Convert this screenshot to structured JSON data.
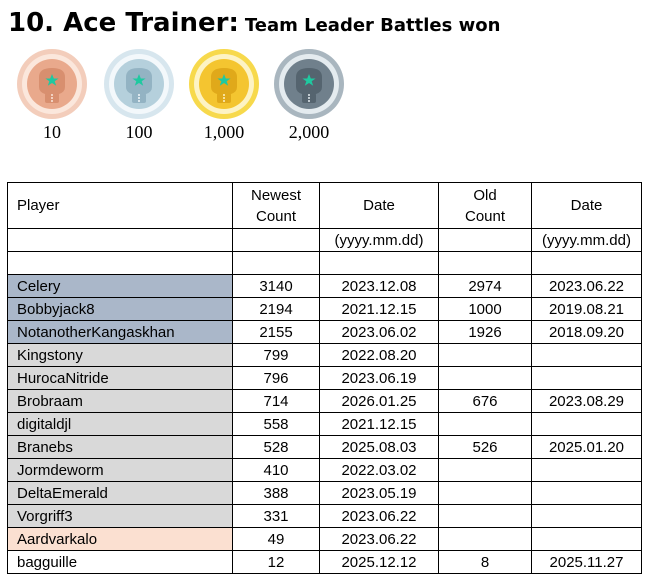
{
  "header": {
    "title": "10. Ace Trainer:",
    "subtitle": "Team Leader Battles won"
  },
  "medals": [
    {
      "tier": "bronze",
      "icon": "boxing-glove-icon",
      "label": "10",
      "color": "#e9a98c"
    },
    {
      "tier": "silver",
      "icon": "boxing-glove-icon",
      "label": "100",
      "color": "#b5d0dc"
    },
    {
      "tier": "gold",
      "icon": "boxing-glove-icon",
      "label": "1,000",
      "color": "#f4c530"
    },
    {
      "tier": "platinum",
      "icon": "boxing-glove-icon",
      "label": "2,000",
      "color": "#70808c"
    }
  ],
  "table": {
    "headers": {
      "player": "Player",
      "newest_count_line1": "Newest",
      "newest_count_line2": "Count",
      "date": "Date",
      "old_count_line1": "Old",
      "old_count_line2": "Count",
      "old_date": "Date",
      "date_format": "(yyyy.mm.dd)",
      "old_date_format": "(yyyy.mm.dd)"
    },
    "row_colors": {
      "blue": "#aab7c9",
      "grey": "#d9d9d9",
      "peach": "#fbe0d1"
    },
    "rows": [
      {
        "player": "Celery",
        "newest": "3140",
        "date": "2023.12.08",
        "old": "2974",
        "old_date": "2023.06.22",
        "shade": "blue"
      },
      {
        "player": "Bobbyjack8",
        "newest": "2194",
        "date": "2021.12.15",
        "old": "1000",
        "old_date": "2019.08.21",
        "shade": "blue"
      },
      {
        "player": "NotanotherKangaskhan",
        "newest": "2155",
        "date": "2023.06.02",
        "old": "1926",
        "old_date": "2018.09.20",
        "shade": "blue"
      },
      {
        "player": "Kingstony",
        "newest": "799",
        "date": "2022.08.20",
        "old": "",
        "old_date": "",
        "shade": "grey"
      },
      {
        "player": "HurocaNitride",
        "newest": "796",
        "date": "2023.06.19",
        "old": "",
        "old_date": "",
        "shade": "grey"
      },
      {
        "player": "Brobraam",
        "newest": "714",
        "date": "2026.01.25",
        "old": "676",
        "old_date": "2023.08.29",
        "shade": "grey"
      },
      {
        "player": "digitaldjl",
        "newest": "558",
        "date": "2021.12.15",
        "old": "",
        "old_date": "",
        "shade": "grey"
      },
      {
        "player": "Branebs",
        "newest": "528",
        "date": "2025.08.03",
        "old": "526",
        "old_date": "2025.01.20",
        "shade": "grey"
      },
      {
        "player": "Jormdeworm",
        "newest": "410",
        "date": "2022.03.02",
        "old": "",
        "old_date": "",
        "shade": "grey"
      },
      {
        "player": "DeltaEmerald",
        "newest": "388",
        "date": "2023.05.19",
        "old": "",
        "old_date": "",
        "shade": "grey"
      },
      {
        "player": "Vorgriff3",
        "newest": "331",
        "date": "2023.06.22",
        "old": "",
        "old_date": "",
        "shade": "grey"
      },
      {
        "player": "Aardvarkalo",
        "newest": "49",
        "date": "2023.06.22",
        "old": "",
        "old_date": "",
        "shade": "peach"
      },
      {
        "player": "bagguille",
        "newest": "12",
        "date": "2025.12.12",
        "old": "8",
        "old_date": "2025.11.27",
        "shade": "none"
      }
    ]
  }
}
